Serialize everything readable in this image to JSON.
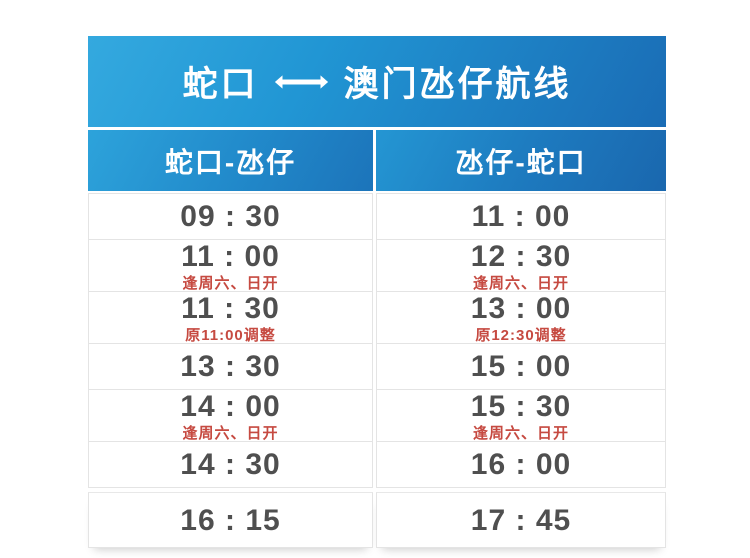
{
  "header": {
    "title_left": "蛇口",
    "arrow": "⟷",
    "title_right": "澳门氹仔航线",
    "title_full": "蛇口 ⟷ 澳门氹仔航线"
  },
  "columns": [
    {
      "label": "蛇口-氹仔"
    },
    {
      "label": "氹仔-蛇口"
    }
  ],
  "rows": [
    {
      "left": {
        "time": "09 : 30",
        "note": ""
      },
      "right": {
        "time": "11 : 00",
        "note": ""
      }
    },
    {
      "left": {
        "time": "11 : 00",
        "note": "逢周六、日开"
      },
      "right": {
        "time": "12 : 30",
        "note": "逢周六、日开"
      }
    },
    {
      "left": {
        "time": "11 : 30",
        "note": "原11:00调整"
      },
      "right": {
        "time": "13 : 00",
        "note": "原12:30调整"
      }
    },
    {
      "left": {
        "time": "13 : 30",
        "note": ""
      },
      "right": {
        "time": "15 : 00",
        "note": ""
      }
    },
    {
      "left": {
        "time": "14 : 00",
        "note": "逢周六、日开"
      },
      "right": {
        "time": "15 : 30",
        "note": "逢周六、日开"
      }
    },
    {
      "left": {
        "time": "14 : 30",
        "note": ""
      },
      "right": {
        "time": "16 : 00",
        "note": ""
      }
    },
    {
      "left": {
        "time": "16 : 15",
        "note": ""
      },
      "right": {
        "time": "17 : 45",
        "note": ""
      }
    }
  ],
  "colors": {
    "header_blue_light": "#34a9df",
    "header_blue_dark": "#1a67ae",
    "header_text": "#ffffff",
    "time_text": "#4f4f4f",
    "note_red": "#c64a41",
    "cell_border": "#e4e4e4",
    "page_bg": "#ffffff"
  },
  "chart_data": {
    "type": "table",
    "title": "蛇口 ⟷ 澳门氹仔航线",
    "columns": [
      "蛇口-氹仔",
      "氹仔-蛇口"
    ],
    "rows": [
      [
        "09:30",
        "11:00"
      ],
      [
        "11:00 (逢周六、日开)",
        "12:30 (逢周六、日开)"
      ],
      [
        "11:30 (原11:00调整)",
        "13:00 (原12:30调整)"
      ],
      [
        "13:30",
        "15:00"
      ],
      [
        "14:00 (逢周六、日开)",
        "15:30 (逢周六、日开)"
      ],
      [
        "14:30",
        "16:00"
      ],
      [
        "16:15",
        "17:45"
      ]
    ],
    "notes_meaning": "逢周六、日开 = operates on Saturdays and Sundays; 原…调整 = adjusted from original time"
  }
}
